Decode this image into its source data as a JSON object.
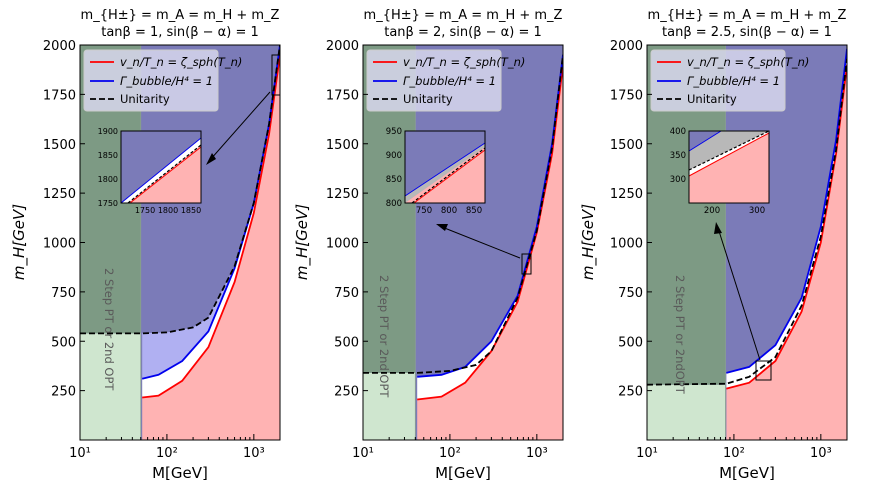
{
  "chart_data": [
    {
      "type": "area",
      "title_line1": "m_{H±} = m_A = m_H + m_Z",
      "title_line2": "tanβ = 1, sin(β − α) = 1",
      "xlabel": "M[GeV]",
      "ylabel": "m_H[GeV]",
      "xscale": "log",
      "xlim": [
        10,
        2000
      ],
      "ylim": [
        0,
        2000
      ],
      "yticks": [
        250,
        500,
        750,
        1000,
        1250,
        1500,
        1750,
        2000
      ],
      "xticks": [
        {
          "value": 10,
          "label": "10¹"
        },
        {
          "value": 100,
          "label": "10²"
        },
        {
          "value": 1000,
          "label": "10³"
        }
      ],
      "legend": [
        "v_n/T_n = ζ_sph(T_n)",
        "Γ_bubble/H⁴ = 1",
        "Unitarity"
      ],
      "band_label": "2 Step PT or 2nd OPT",
      "band_xmax": 50,
      "unitarity_flat": 540,
      "series": [
        {
          "name": "sphaleron (red)",
          "x": [
            52,
            80,
            150,
            300,
            600,
            1000,
            1500,
            2000
          ],
          "y": [
            215,
            225,
            300,
            470,
            800,
            1150,
            1550,
            1950
          ]
        },
        {
          "name": "bubble nucleation (blue)",
          "x": [
            52,
            80,
            150,
            300,
            600,
            1000,
            1500,
            2000
          ],
          "y": [
            310,
            330,
            400,
            550,
            870,
            1200,
            1600,
            2000
          ]
        },
        {
          "name": "unitarity (dashed)",
          "x": [
            10,
            52,
            100,
            200,
            300,
            600,
            1000,
            1500,
            2000
          ],
          "y": [
            540,
            540,
            545,
            570,
            620,
            880,
            1200,
            1600,
            2000
          ]
        }
      ],
      "inset": {
        "xlim": [
          1700,
          1870
        ],
        "ylim": [
          1750,
          1900
        ],
        "xticks": [
          {
            "value": 1750,
            "label": "1750"
          },
          {
            "value": 1800,
            "label": "1800"
          },
          {
            "value": 1850,
            "label": "1850"
          }
        ],
        "yticks": [
          {
            "value": 1750,
            "label": "1750"
          },
          {
            "value": 1800,
            "label": "1800"
          },
          {
            "value": 1850,
            "label": "1850"
          },
          {
            "value": 1900,
            "label": "1900"
          }
        ],
        "zoom_box": {
          "x": [
            1700,
            1870
          ],
          "y": [
            1750,
            1900
          ]
        }
      }
    },
    {
      "type": "area",
      "title_line1": "m_{H±} = m_A = m_H + m_Z",
      "title_line2": "tanβ = 2, sin(β − α) = 1",
      "xlabel": "M[GeV]",
      "ylabel": "m_H[GeV]",
      "xscale": "log",
      "xlim": [
        10,
        2000
      ],
      "ylim": [
        0,
        2000
      ],
      "yticks": [
        250,
        500,
        750,
        1000,
        1250,
        1500,
        1750,
        2000
      ],
      "xticks": [
        {
          "value": 10,
          "label": "10¹"
        },
        {
          "value": 100,
          "label": "10²"
        },
        {
          "value": 1000,
          "label": "10³"
        }
      ],
      "legend": [
        "v_n/T_n = ζ_sph(T_n)",
        "Γ_bubble/H⁴ = 1",
        "Unitarity"
      ],
      "band_label": "2 Step PT or 2nd OPT",
      "band_xmax": 40,
      "unitarity_flat": 340,
      "series": [
        {
          "name": "sphaleron (red)",
          "x": [
            42,
            80,
            150,
            300,
            600,
            1000,
            1500,
            2000
          ],
          "y": [
            205,
            220,
            290,
            450,
            700,
            1050,
            1450,
            1900
          ]
        },
        {
          "name": "bubble nucleation (blue)",
          "x": [
            42,
            80,
            150,
            300,
            600,
            1000,
            1500,
            2000
          ],
          "y": [
            320,
            330,
            370,
            500,
            730,
            1080,
            1500,
            1950
          ]
        },
        {
          "name": "unitarity (dashed)",
          "x": [
            10,
            42,
            100,
            200,
            300,
            600,
            1000,
            1500,
            2000
          ],
          "y": [
            340,
            340,
            350,
            380,
            450,
            720,
            1060,
            1480,
            1950
          ]
        }
      ],
      "inset": {
        "xlim": [
          700,
          860
        ],
        "ylim": [
          800,
          950
        ],
        "xticks": [
          {
            "value": 750,
            "label": "750"
          },
          {
            "value": 800,
            "label": "800"
          },
          {
            "value": 850,
            "label": "850"
          }
        ],
        "yticks": [
          {
            "value": 800,
            "label": "800"
          },
          {
            "value": 850,
            "label": "850"
          },
          {
            "value": 900,
            "label": "900"
          },
          {
            "value": 950,
            "label": "950"
          }
        ],
        "zoom_box": {
          "x": [
            700,
            860
          ],
          "y": [
            800,
            950
          ]
        }
      }
    },
    {
      "type": "area",
      "title_line1": "m_{H±} = m_A = m_H + m_Z",
      "title_line2": "tanβ = 2.5, sin(β − α) = 1",
      "xlabel": "M[GeV]",
      "ylabel": "m_H[GeV]",
      "xscale": "log",
      "xlim": [
        10,
        2000
      ],
      "ylim": [
        0,
        2000
      ],
      "yticks": [
        250,
        500,
        750,
        1000,
        1250,
        1500,
        1750,
        2000
      ],
      "xticks": [
        {
          "value": 10,
          "label": "10¹"
        },
        {
          "value": 100,
          "label": "10²"
        },
        {
          "value": 1000,
          "label": "10³"
        }
      ],
      "legend": [
        "v_n/T_n = ζ_sph(T_n)",
        "Γ_bubble/H⁴ = 1",
        "Unitarity"
      ],
      "band_label": "2 Step PT or 2ndOPT",
      "band_xmax": 80,
      "unitarity_flat": 280,
      "series": [
        {
          "name": "sphaleron (red)",
          "x": [
            82,
            150,
            300,
            600,
            1000,
            1500,
            2000
          ],
          "y": [
            260,
            290,
            400,
            650,
            1000,
            1450,
            1900
          ]
        },
        {
          "name": "bubble nucleation (blue)",
          "x": [
            82,
            150,
            300,
            600,
            1000,
            1500,
            2000
          ],
          "y": [
            340,
            370,
            480,
            720,
            1080,
            1520,
            1980
          ]
        },
        {
          "name": "unitarity (dashed)",
          "x": [
            10,
            82,
            150,
            300,
            600,
            1000,
            1500,
            2000
          ],
          "y": [
            280,
            285,
            320,
            420,
            680,
            1030,
            1470,
            1930
          ]
        }
      ],
      "inset": {
        "xlim": [
          150,
          320
        ],
        "ylim": [
          250,
          400
        ],
        "xticks": [
          {
            "value": 200,
            "label": "200"
          },
          {
            "value": 300,
            "label": "300"
          }
        ],
        "yticks": [
          {
            "value": 300,
            "label": "300"
          },
          {
            "value": 350,
            "label": "350"
          },
          {
            "value": 400,
            "label": "400"
          }
        ],
        "zoom_box": {
          "x": [
            160,
            310
          ],
          "y": [
            280,
            400
          ]
        }
      }
    }
  ],
  "colors": {
    "blue_region": "#7b7bb8",
    "green_band": "#cfe6cf",
    "green_overlay": "#7d9a84",
    "red_region": "#ffb3b3",
    "light_blue_region": "#b0b0f2",
    "gray_region": "#b8b8b8",
    "red_line": "#ff0000",
    "blue_line": "#0000ee"
  }
}
